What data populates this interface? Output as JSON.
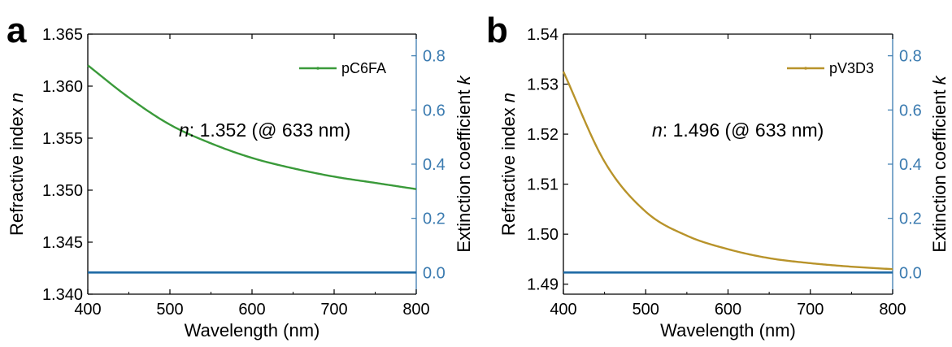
{
  "chart_data": [
    {
      "panel": "a",
      "type": "line",
      "xlabel": "Wavelength (nm)",
      "ylabel": "Refractive index n",
      "ylabel_prefix": "Refractive index ",
      "ylabel_var": "n",
      "y2label": "Extinction coefficient k",
      "y2label_prefix": "Extinction coefficient ",
      "y2label_var": "k",
      "xlim": [
        400,
        800
      ],
      "ylim": [
        1.34,
        1.365
      ],
      "y2lim": [
        -0.08,
        0.88
      ],
      "xticks": [
        "400",
        "500",
        "600",
        "700",
        "800"
      ],
      "xtick_values": [
        400,
        500,
        600,
        700,
        800
      ],
      "yticks": [
        "1.340",
        "1.345",
        "1.350",
        "1.355",
        "1.360",
        "1.365"
      ],
      "ytick_values": [
        1.34,
        1.345,
        1.35,
        1.355,
        1.36,
        1.365
      ],
      "y2ticks": [
        "0.0",
        "0.2",
        "0.4",
        "0.6",
        "0.8"
      ],
      "y2tick_values": [
        0.0,
        0.2,
        0.4,
        0.6,
        0.8
      ],
      "legend": "top-right",
      "annotation": "n: 1.352 (@ 633 nm)",
      "annotation_var": "n",
      "annotation_rest": ": 1.352 (@ 633 nm)",
      "colors": {
        "n": "#3a9a3a",
        "k": "#1f6aa5",
        "right_axis": "#3b7bb0"
      },
      "series": [
        {
          "name": "pC6FA",
          "axis": "left",
          "x": [
            400,
            450,
            500,
            550,
            600,
            650,
            700,
            750,
            800
          ],
          "values": [
            1.362,
            1.3589,
            1.3563,
            1.3545,
            1.3531,
            1.3521,
            1.3513,
            1.3507,
            1.3501
          ]
        },
        {
          "axis": "right",
          "x": [
            400,
            800
          ],
          "values": [
            0.0,
            0.0
          ]
        }
      ]
    },
    {
      "panel": "b",
      "type": "line",
      "xlabel": "Wavelength (nm)",
      "ylabel": "Refractive index n",
      "ylabel_prefix": "Refractive index ",
      "ylabel_var": "n",
      "y2label": "Extinction coefficient k",
      "y2label_prefix": "Extinction coefficient ",
      "y2label_var": "k",
      "xlim": [
        400,
        800
      ],
      "ylim": [
        1.488,
        1.54
      ],
      "y2lim": [
        -0.08,
        0.88
      ],
      "xticks": [
        "400",
        "500",
        "600",
        "700",
        "800"
      ],
      "xtick_values": [
        400,
        500,
        600,
        700,
        800
      ],
      "yticks": [
        "1.49",
        "1.50",
        "1.51",
        "1.52",
        "1.53",
        "1.54"
      ],
      "ytick_values": [
        1.49,
        1.5,
        1.51,
        1.52,
        1.53,
        1.54
      ],
      "y2ticks": [
        "0.0",
        "0.2",
        "0.4",
        "0.6",
        "0.8"
      ],
      "y2tick_values": [
        0.0,
        0.2,
        0.4,
        0.6,
        0.8
      ],
      "legend": "top-right",
      "annotation": "n: 1.496 (@ 633 nm)",
      "annotation_var": "n",
      "annotation_rest": ": 1.496 (@ 633 nm)",
      "colors": {
        "n": "#b8932a",
        "k": "#1f6aa5",
        "right_axis": "#3b7bb0"
      },
      "series": [
        {
          "name": "pV3D3",
          "axis": "left",
          "x": [
            400,
            450,
            500,
            550,
            600,
            650,
            700,
            750,
            800
          ],
          "values": [
            1.5325,
            1.5145,
            1.5045,
            1.4997,
            1.497,
            1.4952,
            1.4942,
            1.4935,
            1.493
          ]
        },
        {
          "axis": "right",
          "x": [
            400,
            800
          ],
          "values": [
            0.0,
            0.0
          ]
        }
      ]
    }
  ]
}
